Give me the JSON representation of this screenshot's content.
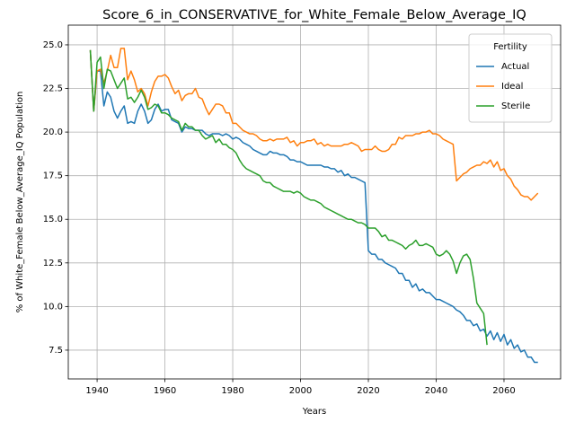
{
  "chart_data": {
    "type": "line",
    "title": "Score_6_in_CONSERVATIVE_for_White_Female_Below_Average_IQ",
    "x_label": "Years",
    "y_label": "% of White_Female Below_Average_IQ Population",
    "legend_title": "Fertility",
    "legend_position": "upper right",
    "grid": true,
    "xlim": [
      1931.5,
      2076.7
    ],
    "ylim": [
      5.85,
      26.13
    ],
    "xticks": [
      1940,
      1960,
      1980,
      2000,
      2020,
      2040,
      2060
    ],
    "yticks": [
      7.5,
      {
        "value": 10,
        "label": "10.0"
      },
      12.5,
      {
        "value": 15,
        "label": "15.0"
      },
      17.5,
      {
        "value": 20,
        "label": "20.0"
      },
      22.5,
      {
        "value": 25,
        "label": "25.0"
      }
    ],
    "x": [
      1938,
      1939,
      1940,
      1941,
      1942,
      1943,
      1944,
      1945,
      1946,
      1947,
      1948,
      1949,
      1950,
      1951,
      1952,
      1953,
      1954,
      1955,
      1956,
      1957,
      1958,
      1959,
      1960,
      1961,
      1962,
      1963,
      1964,
      1965,
      1966,
      1967,
      1968,
      1969,
      1970,
      1971,
      1972,
      1973,
      1974,
      1975,
      1976,
      1977,
      1978,
      1979,
      1980,
      1981,
      1982,
      1983,
      1984,
      1985,
      1986,
      1987,
      1988,
      1989,
      1990,
      1991,
      1992,
      1993,
      1994,
      1995,
      1996,
      1997,
      1998,
      1999,
      2000,
      2001,
      2002,
      2003,
      2004,
      2005,
      2006,
      2007,
      2008,
      2009,
      2010,
      2011,
      2012,
      2013,
      2014,
      2015,
      2016,
      2017,
      2018,
      2019,
      2020,
      2021,
      2022,
      2023,
      2024,
      2025,
      2026,
      2027,
      2028,
      2029,
      2030,
      2031,
      2032,
      2033,
      2034,
      2035,
      2036,
      2037,
      2038,
      2039,
      2040,
      2041,
      2042,
      2043,
      2044,
      2045,
      2046,
      2047,
      2048,
      2049,
      2050,
      2051,
      2052,
      2053,
      2054,
      2055,
      2056,
      2057,
      2058,
      2059,
      2060,
      2061,
      2062,
      2063,
      2064,
      2065,
      2066,
      2067,
      2068,
      2069,
      2070
    ],
    "series": [
      {
        "name": "Actual",
        "color": "#1f77b4",
        "values": [
          24.7,
          21.2,
          23.5,
          23.5,
          21.5,
          22.3,
          22.0,
          21.2,
          20.8,
          21.2,
          21.5,
          20.5,
          20.6,
          20.5,
          21.2,
          21.6,
          21.2,
          20.5,
          20.7,
          21.3,
          21.6,
          21.2,
          21.3,
          21.3,
          20.7,
          20.6,
          20.5,
          20.0,
          20.3,
          20.2,
          20.2,
          20.1,
          20.1,
          20.1,
          19.9,
          19.8,
          19.9,
          19.9,
          19.9,
          19.8,
          19.9,
          19.8,
          19.6,
          19.7,
          19.6,
          19.4,
          19.3,
          19.2,
          19.0,
          18.9,
          18.8,
          18.7,
          18.7,
          18.9,
          18.8,
          18.8,
          18.7,
          18.7,
          18.6,
          18.4,
          18.4,
          18.3,
          18.3,
          18.2,
          18.1,
          18.1,
          18.1,
          18.1,
          18.1,
          18.0,
          18.0,
          17.9,
          17.9,
          17.7,
          17.8,
          17.5,
          17.6,
          17.4,
          17.4,
          17.3,
          17.2,
          17.1,
          13.2,
          13.0,
          13.0,
          12.7,
          12.7,
          12.5,
          12.4,
          12.3,
          12.2,
          11.9,
          11.9,
          11.5,
          11.5,
          11.1,
          11.3,
          10.9,
          11.0,
          10.8,
          10.8,
          10.6,
          10.4,
          10.4,
          10.3,
          10.2,
          10.1,
          10.0,
          9.8,
          9.7,
          9.5,
          9.2,
          9.2,
          8.9,
          9.0,
          8.6,
          8.7,
          8.3,
          8.6,
          8.1,
          8.5,
          8.0,
          8.4,
          7.8,
          8.1,
          7.6,
          7.8,
          7.4,
          7.5,
          7.1,
          7.1,
          6.8,
          6.8
        ]
      },
      {
        "name": "Ideal",
        "color": "#ff7f0e",
        "values": [
          24.7,
          21.2,
          23.5,
          23.6,
          22.8,
          23.5,
          24.4,
          23.7,
          23.7,
          24.8,
          24.8,
          23.0,
          23.5,
          23.0,
          22.3,
          22.5,
          22.2,
          21.5,
          22.3,
          22.9,
          23.2,
          23.2,
          23.3,
          23.1,
          22.6,
          22.2,
          22.4,
          21.8,
          22.1,
          22.2,
          22.2,
          22.5,
          22.0,
          21.9,
          21.4,
          21.0,
          21.3,
          21.6,
          21.6,
          21.5,
          21.1,
          21.1,
          20.5,
          20.5,
          20.3,
          20.1,
          20.0,
          19.9,
          19.9,
          19.8,
          19.6,
          19.5,
          19.5,
          19.6,
          19.5,
          19.6,
          19.6,
          19.6,
          19.7,
          19.4,
          19.5,
          19.2,
          19.4,
          19.4,
          19.5,
          19.5,
          19.6,
          19.3,
          19.4,
          19.2,
          19.3,
          19.2,
          19.2,
          19.2,
          19.2,
          19.3,
          19.3,
          19.4,
          19.3,
          19.2,
          18.9,
          19.0,
          19.0,
          19.0,
          19.2,
          19.0,
          18.9,
          18.9,
          19.0,
          19.3,
          19.3,
          19.7,
          19.6,
          19.8,
          19.8,
          19.8,
          19.9,
          19.9,
          20.0,
          20.0,
          20.1,
          19.9,
          19.9,
          19.8,
          19.6,
          19.5,
          19.4,
          19.3,
          17.2,
          17.4,
          17.6,
          17.7,
          17.9,
          18.0,
          18.1,
          18.1,
          18.3,
          18.2,
          18.4,
          18.0,
          18.3,
          17.8,
          17.9,
          17.5,
          17.3,
          16.9,
          16.7,
          16.4,
          16.3,
          16.3,
          16.1,
          16.3,
          16.5
        ]
      },
      {
        "name": "Sterile",
        "color": "#2ca02c",
        "values": [
          24.7,
          21.2,
          24.0,
          24.3,
          22.5,
          23.6,
          23.5,
          23.0,
          22.5,
          22.8,
          23.1,
          21.9,
          22.0,
          21.7,
          22.0,
          22.4,
          22.0,
          21.3,
          21.4,
          21.6,
          21.5,
          21.1,
          21.1,
          21.0,
          20.8,
          20.7,
          20.6,
          20.1,
          20.5,
          20.3,
          20.3,
          20.1,
          20.1,
          19.8,
          19.6,
          19.7,
          19.8,
          19.4,
          19.6,
          19.3,
          19.3,
          19.1,
          19.0,
          18.8,
          18.4,
          18.1,
          17.9,
          17.8,
          17.7,
          17.6,
          17.5,
          17.2,
          17.1,
          17.1,
          16.9,
          16.8,
          16.7,
          16.6,
          16.6,
          16.6,
          16.5,
          16.6,
          16.5,
          16.3,
          16.2,
          16.1,
          16.1,
          16.0,
          15.9,
          15.7,
          15.6,
          15.5,
          15.4,
          15.3,
          15.2,
          15.1,
          15.0,
          15.0,
          14.9,
          14.8,
          14.8,
          14.7,
          14.5,
          14.5,
          14.5,
          14.3,
          14.0,
          14.1,
          13.8,
          13.8,
          13.7,
          13.6,
          13.5,
          13.3,
          13.5,
          13.6,
          13.8,
          13.5,
          13.5,
          13.6,
          13.5,
          13.4,
          13.0,
          12.9,
          13.0,
          13.2,
          13.0,
          12.6,
          11.9,
          12.5,
          12.9,
          13.0,
          12.7,
          11.6,
          10.2,
          9.9,
          9.6,
          7.8,
          null,
          null,
          null,
          null,
          null,
          null,
          null,
          null,
          null,
          null,
          null,
          null,
          null,
          null,
          null
        ]
      }
    ]
  }
}
